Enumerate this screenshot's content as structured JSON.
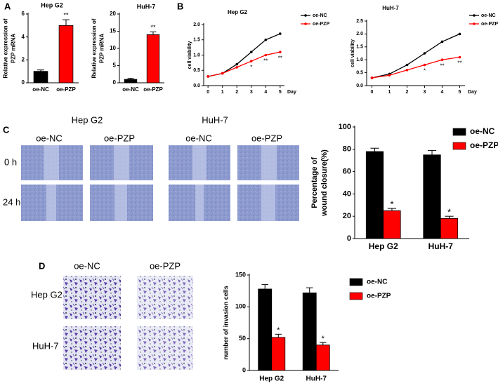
{
  "panel_labels": [
    "A",
    "B",
    "C",
    "D"
  ],
  "wound_assay": {
    "groups": [
      "Hep G2",
      "HuH-7"
    ],
    "columns": [
      "oe-NC",
      "oe-PZP",
      "oe-NC",
      "oe-PZP"
    ],
    "rows": [
      "0 h",
      "24 h"
    ]
  },
  "invasion_assay": {
    "columns": [
      "oe-NC",
      "oe-PZP"
    ],
    "rows": [
      "Hep G2",
      "HuH-7"
    ]
  },
  "chart_data": [
    {
      "type": "bar",
      "title": "Hep G2",
      "ylabel": [
        "Relative expression of",
        "PZP mRNA"
      ],
      "categories": [
        "oe-NC",
        "oe-PZP"
      ],
      "values": [
        1.0,
        5.0
      ],
      "errors": [
        0.12,
        0.5
      ],
      "colors": [
        "#000000",
        "#ff0000"
      ],
      "significance": [
        null,
        "**"
      ],
      "ylim": [
        0,
        6
      ],
      "yticks": [
        0,
        2,
        4,
        6
      ],
      "grid": false
    },
    {
      "type": "bar",
      "title": "HuH-7",
      "ylabel": [
        "Relative expression of",
        "PZP mRNA"
      ],
      "categories": [
        "oe-NC",
        "oe-PZP"
      ],
      "values": [
        1.0,
        14.0
      ],
      "errors": [
        0.3,
        0.8
      ],
      "colors": [
        "#000000",
        "#ff0000"
      ],
      "significance": [
        null,
        "**"
      ],
      "ylim": [
        0,
        20
      ],
      "yticks": [
        0,
        5,
        10,
        15,
        20
      ],
      "grid": false
    },
    {
      "type": "line",
      "title": "Hep G2",
      "ylabel": [
        "cell viability"
      ],
      "xlabel": "Day",
      "x": [
        0,
        1,
        2,
        3,
        4,
        5
      ],
      "xlim": [
        -0.3,
        5.3
      ],
      "xticks": [
        0,
        1,
        2,
        3,
        4,
        5
      ],
      "series": [
        {
          "name": "oe-NC",
          "color": "#000000",
          "values": [
            0.3,
            0.4,
            0.7,
            1.1,
            1.5,
            1.7
          ]
        },
        {
          "name": "oe-PZP",
          "color": "#ff0000",
          "values": [
            0.3,
            0.4,
            0.6,
            0.8,
            1.0,
            1.1
          ],
          "significance": [
            null,
            null,
            null,
            "*",
            "**",
            "**"
          ]
        }
      ],
      "ylim": [
        0,
        2.0
      ],
      "yticks": [
        {
          "value": 0,
          "label": "0.0"
        },
        0.5,
        {
          "value": 1,
          "label": "1.0"
        },
        1.5,
        {
          "value": 2,
          "label": "2.0"
        }
      ],
      "grid": false
    },
    {
      "type": "line",
      "title": "HuH-7",
      "ylabel": [
        "cell viability"
      ],
      "xlabel": "Day",
      "x": [
        0,
        1,
        2,
        3,
        4,
        5
      ],
      "xlim": [
        -0.3,
        5.3
      ],
      "xticks": [
        0,
        1,
        2,
        3,
        4,
        5
      ],
      "series": [
        {
          "name": "oe-NC",
          "color": "#000000",
          "values": [
            0.3,
            0.45,
            0.8,
            1.25,
            1.7,
            2.0
          ]
        },
        {
          "name": "oe-PZP",
          "color": "#ff0000",
          "values": [
            0.3,
            0.4,
            0.6,
            0.8,
            1.0,
            1.1
          ],
          "significance": [
            null,
            null,
            null,
            "*",
            "**",
            "**"
          ]
        }
      ],
      "ylim": [
        0,
        2.5
      ],
      "yticks": [
        {
          "value": 0,
          "label": "0.0"
        },
        0.5,
        {
          "value": 1,
          "label": "1.0"
        },
        1.5,
        {
          "value": 2,
          "label": "2.0"
        },
        2.5
      ],
      "grid": false
    },
    {
      "type": "bar",
      "ylabel": [
        "Percentage of",
        "wound closure(%)"
      ],
      "categories": [
        "Hep G2",
        "HuH-7"
      ],
      "series": [
        {
          "name": "oe-NC",
          "color": "#000000",
          "values": [
            78,
            75
          ],
          "errors": [
            3,
            4
          ]
        },
        {
          "name": "oe-PZP",
          "color": "#ff0000",
          "values": [
            25,
            18
          ],
          "errors": [
            2,
            2
          ],
          "significance": [
            "*",
            "*"
          ]
        }
      ],
      "ylim": [
        0,
        100
      ],
      "yticks": [
        0,
        20,
        40,
        60,
        80,
        100
      ],
      "grid": false,
      "legend": "top-right"
    },
    {
      "type": "bar",
      "ylabel": [
        "number of invasion cells"
      ],
      "categories": [
        "Hep G2",
        "HuH-7"
      ],
      "series": [
        {
          "name": "oe-NC",
          "color": "#000000",
          "values": [
            128,
            122
          ],
          "errors": [
            7,
            8
          ]
        },
        {
          "name": "oe-PZP",
          "color": "#ff0000",
          "values": [
            52,
            40
          ],
          "errors": [
            5,
            4
          ],
          "significance": [
            "*",
            "*"
          ]
        }
      ],
      "ylim": [
        0,
        150
      ],
      "yticks": [
        0,
        50,
        100,
        150
      ],
      "grid": false,
      "legend": "right"
    }
  ]
}
